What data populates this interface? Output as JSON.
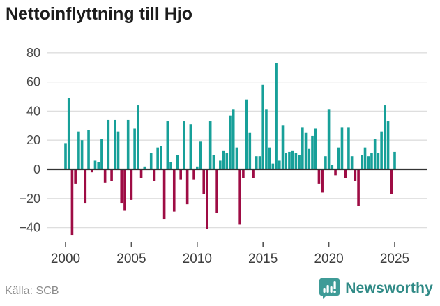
{
  "header": {
    "title": "Nettoinflyttning till Hjo"
  },
  "footer": {
    "source": "Källa: SCB",
    "brand": "Newsworthy"
  },
  "chart_data": {
    "type": "bar",
    "title": "Nettoinflyttning till Hjo",
    "xlabel": "",
    "ylabel": "",
    "x_start": "2000-Q1",
    "x_end": "2025-Q1",
    "frequency": "quarterly",
    "values": [
      18,
      49,
      -45,
      -10,
      26,
      20,
      -23,
      27,
      -2,
      6,
      5,
      21,
      -9,
      34,
      -8,
      34,
      26,
      -23,
      -28,
      34,
      -21,
      28,
      44,
      -6,
      2,
      0,
      11,
      -8,
      15,
      16,
      -34,
      33,
      5,
      -29,
      10,
      -7,
      33,
      -24,
      31,
      -7,
      2,
      19,
      -17,
      -41,
      33,
      10,
      -30,
      6,
      13,
      11,
      37,
      41,
      15,
      -38,
      -6,
      48,
      25,
      -6,
      9,
      9,
      58,
      41,
      15,
      4,
      73,
      6,
      30,
      11,
      12,
      13,
      11,
      10,
      29,
      25,
      14,
      23,
      28,
      -10,
      -16,
      9,
      41,
      3,
      -4,
      15,
      29,
      -6,
      29,
      9,
      -8,
      -25,
      10,
      15,
      9,
      11,
      21,
      11,
      26,
      44,
      33,
      -17,
      12
    ],
    "y_ticks": [
      80,
      60,
      40,
      20,
      0,
      -20,
      -40
    ],
    "x_tick_years": [
      "2000",
      "2005",
      "2010",
      "2015",
      "2020",
      "2025"
    ],
    "ylim": [
      -50,
      85
    ],
    "grid": true,
    "legend": "none",
    "positive_color": "#17a099",
    "negative_color": "#9e0c44",
    "grid_color": "#dedede",
    "zero_line_color": "#333333",
    "axis_label_color": "#4a4a4a",
    "brand_color": "#3e9b97",
    "brand_text_color": "#2f8a86"
  }
}
